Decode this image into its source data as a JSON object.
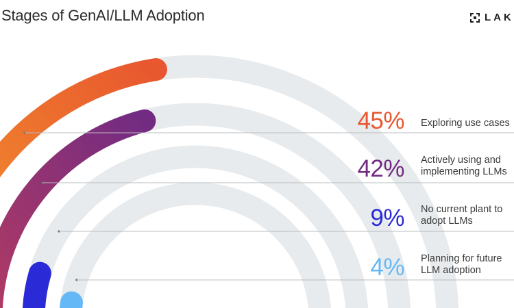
{
  "title": "Stages of GenAI/LLM Adoption",
  "logo": {
    "text": "LAKE",
    "icon": "lakera-logo-icon"
  },
  "colors": {
    "track": "#e8ebed",
    "leader": "#b9bcc0",
    "background": "#ffffff"
  },
  "chart_data": {
    "type": "radial-bar",
    "title": "Stages of GenAI/LLM Adoption",
    "unit": "%",
    "max": 100,
    "series": [
      {
        "value": 45,
        "value_label": "45%",
        "label": "Exploring use cases",
        "color_start": "#f49a2c",
        "color_end": "#e8572f"
      },
      {
        "value": 42,
        "value_label": "42%",
        "label": "Actively using and\nimplementing LLMs",
        "color_start": "#b33b63",
        "color_end": "#722b82"
      },
      {
        "value": 9,
        "value_label": "9%",
        "label": "No current plant to\nadopt LLMs",
        "color_start": "#2a2bd6",
        "color_end": "#2a2bd6"
      },
      {
        "value": 4,
        "value_label": "4%",
        "label": "Planning for future\nLLM adoption",
        "color_start": "#64b8f5",
        "color_end": "#64b8f5"
      }
    ]
  }
}
